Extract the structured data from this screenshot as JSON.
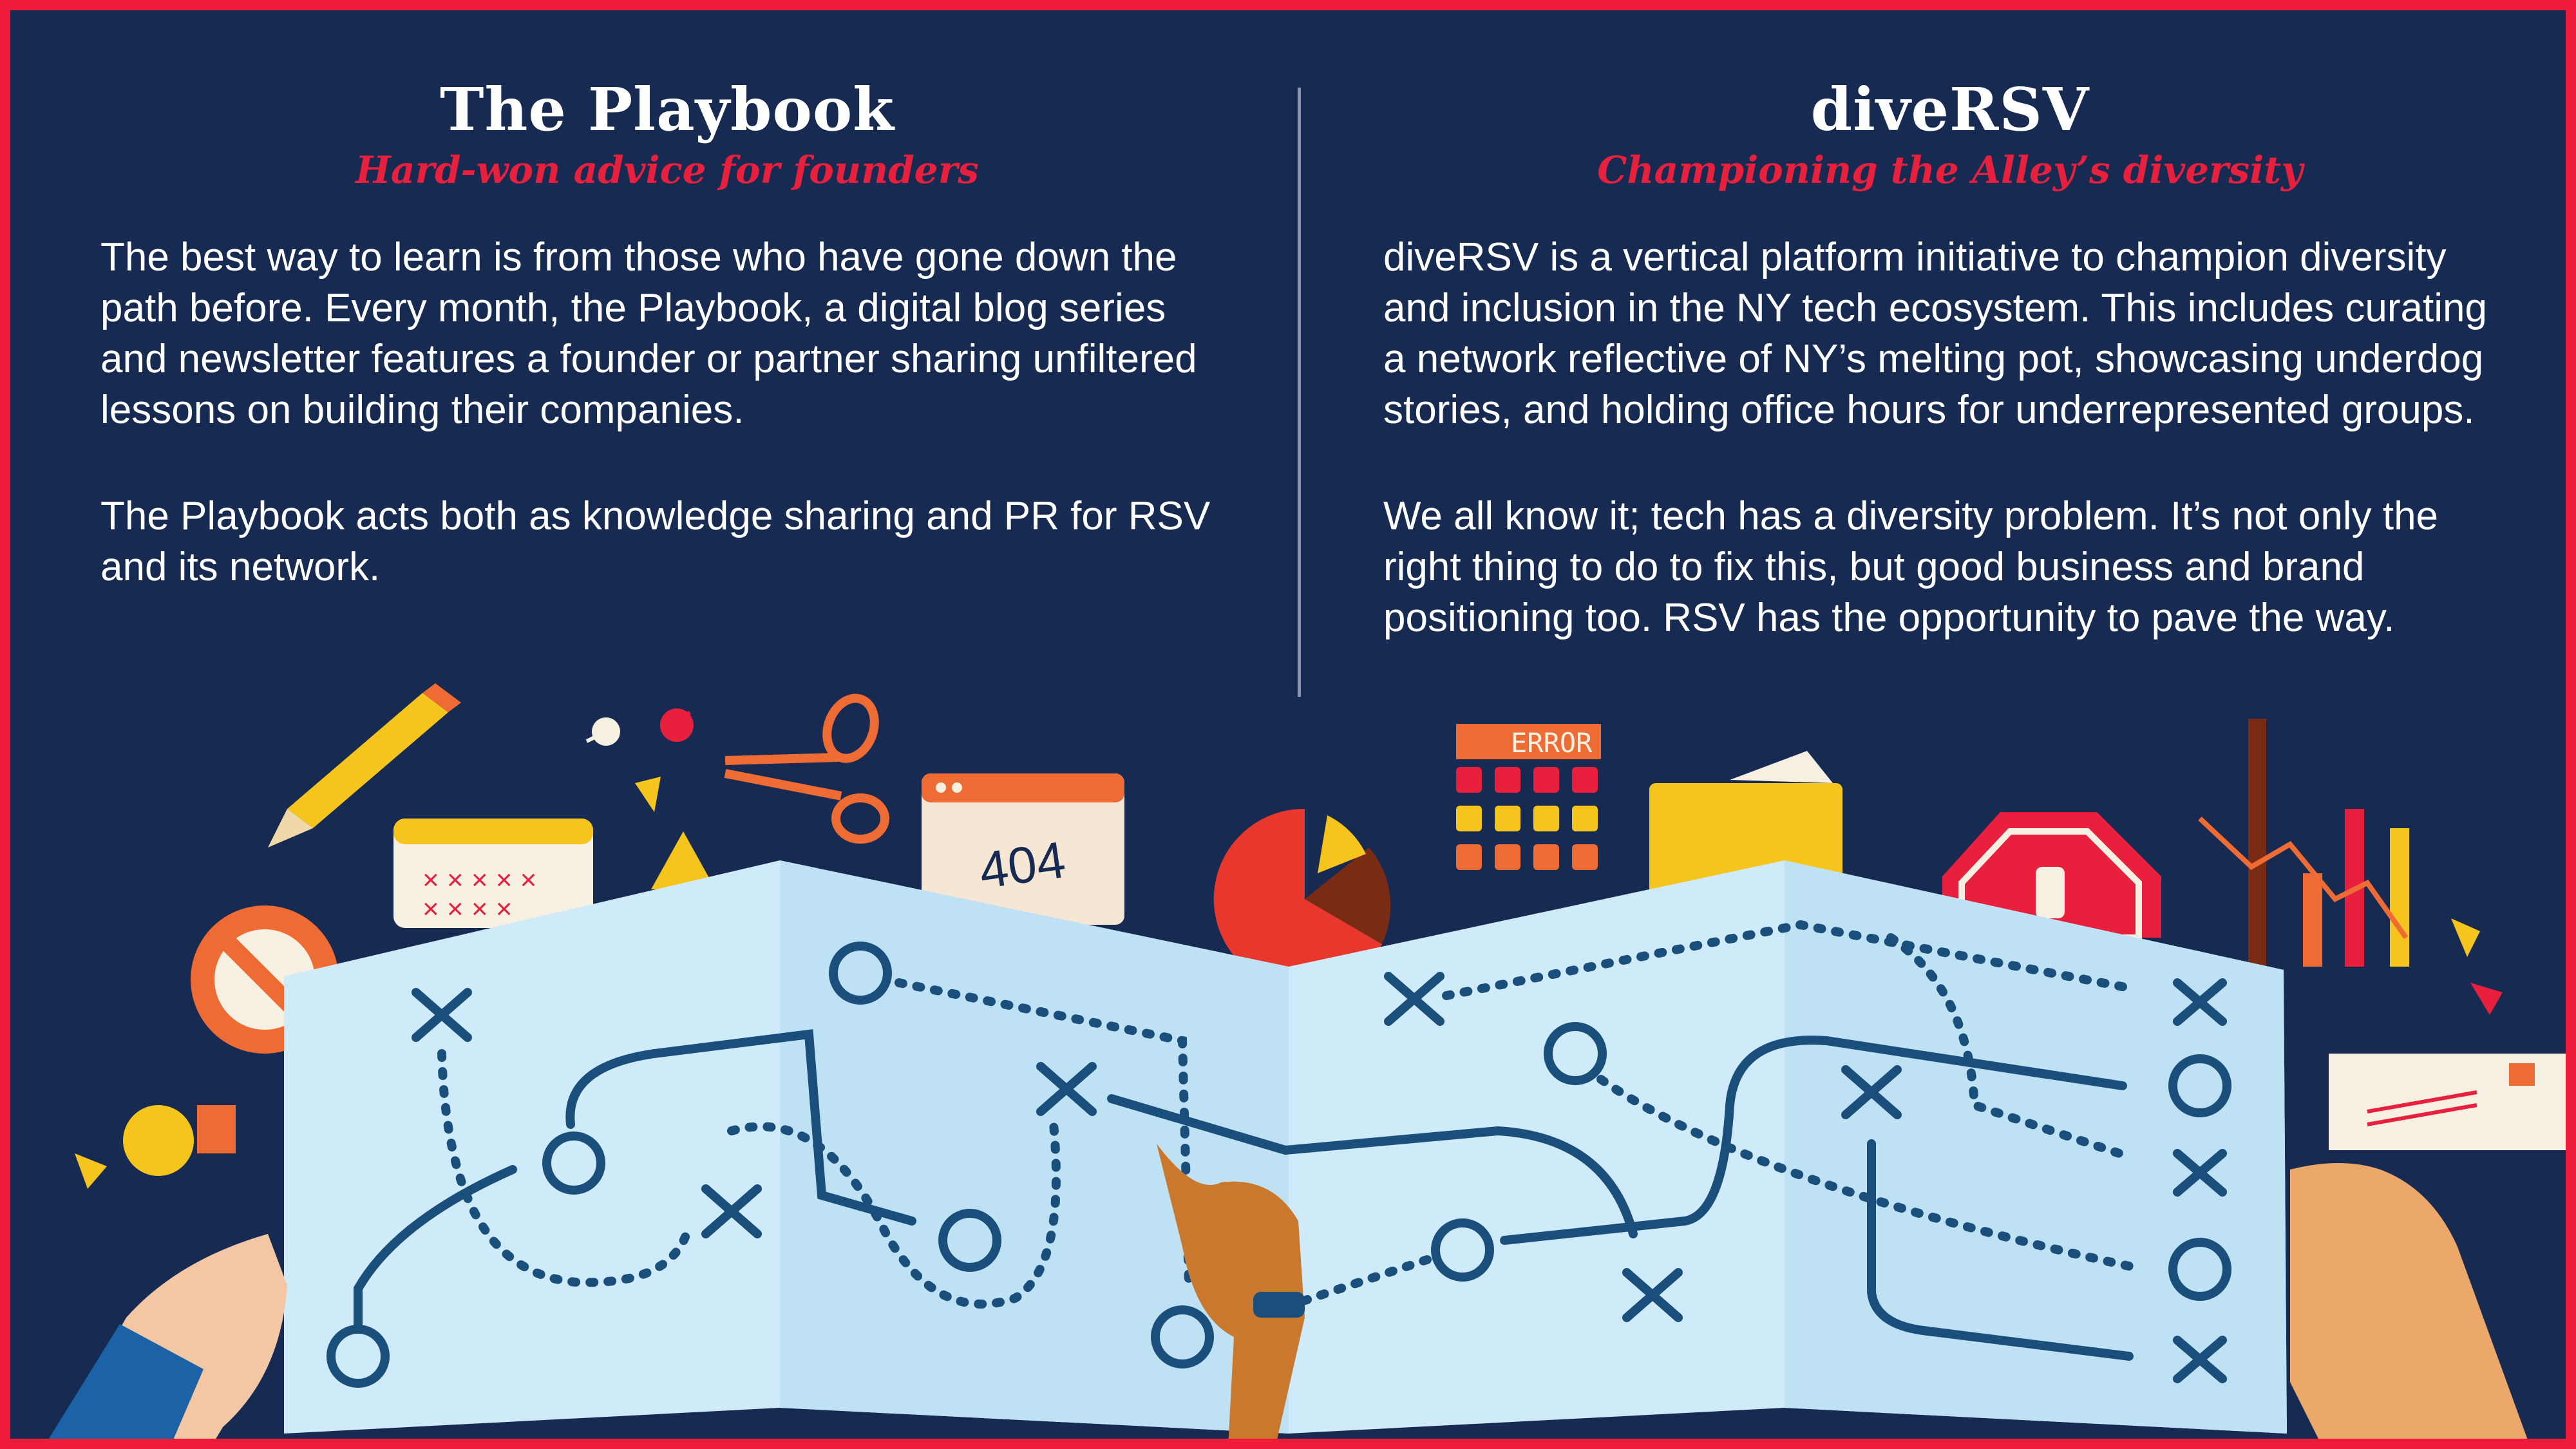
{
  "left": {
    "title": "The Playbook",
    "subtitle": "Hard-won advice for founders",
    "paragraphs": [
      "The best way to learn is from those who have gone down the path before. Every month, the Playbook, a digital blog series and newsletter features a founder or partner sharing unfiltered lessons on building their companies.",
      "The Playbook acts both as knowledge sharing and PR for RSV and its network."
    ]
  },
  "right": {
    "title": "diveRSV",
    "subtitle": "Championing the Alley’s diversity",
    "paragraphs": [
      "diveRSV is a vertical platform initiative to champion diversity and inclusion in the NY tech ecosystem. This includes curating a network reflective of NY’s melting pot, showcasing underdog stories, and holding office hours for underrepresented groups.",
      "We all know it; tech has a diversity problem. It’s not only the right thing to do to fix this, but good business and brand positioning too. RSV has the opportunity to pave the way."
    ]
  },
  "illustration": {
    "error_label": "ERROR",
    "page_not_found_label": "404"
  },
  "colors": {
    "background": "#172a52",
    "border": "#ee1c3a",
    "accent_red": "#e8203e",
    "map_light": "#cfeaf8",
    "map_dark": "#1a4f7c"
  }
}
